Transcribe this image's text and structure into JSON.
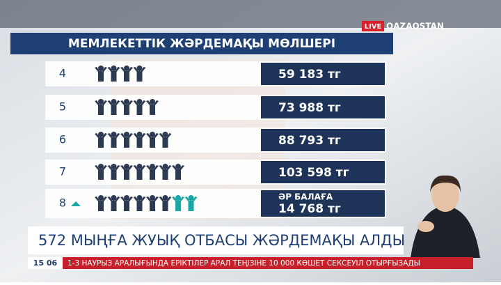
{
  "channel": {
    "live": "LIVE",
    "name": "QAZAQSTAN"
  },
  "infographic": {
    "title": "МЕМЛЕКЕТТІК ЖӘРДЕМАҚЫ МӨЛШЕРІ",
    "rows": [
      {
        "children": 4,
        "amount": "59 183 тг"
      },
      {
        "children": 5,
        "amount": "73 988 тг"
      },
      {
        "children": 6,
        "amount": "88 793 тг"
      },
      {
        "children": 7,
        "amount": "103 598 тг"
      },
      {
        "children": 8,
        "note": "ӘР БАЛАҒА",
        "amount": "14 768 тг"
      }
    ]
  },
  "headline": "572 МЫҢҒА ЖУЫҚ ОТБАСЫ ЖӘРДЕМАҚЫ АЛДЫ",
  "ticker": {
    "time": "15 06",
    "text": "1-3 НАУРЫЗ АРАЛЫҒЫНДА ЕРІКТІЛЕР АРАЛ ТЕҢІЗІНЕ 10 000 КӨШЕТ СЕКСЕУІЛ ОТЫРҒЫЗАДЫ"
  }
}
